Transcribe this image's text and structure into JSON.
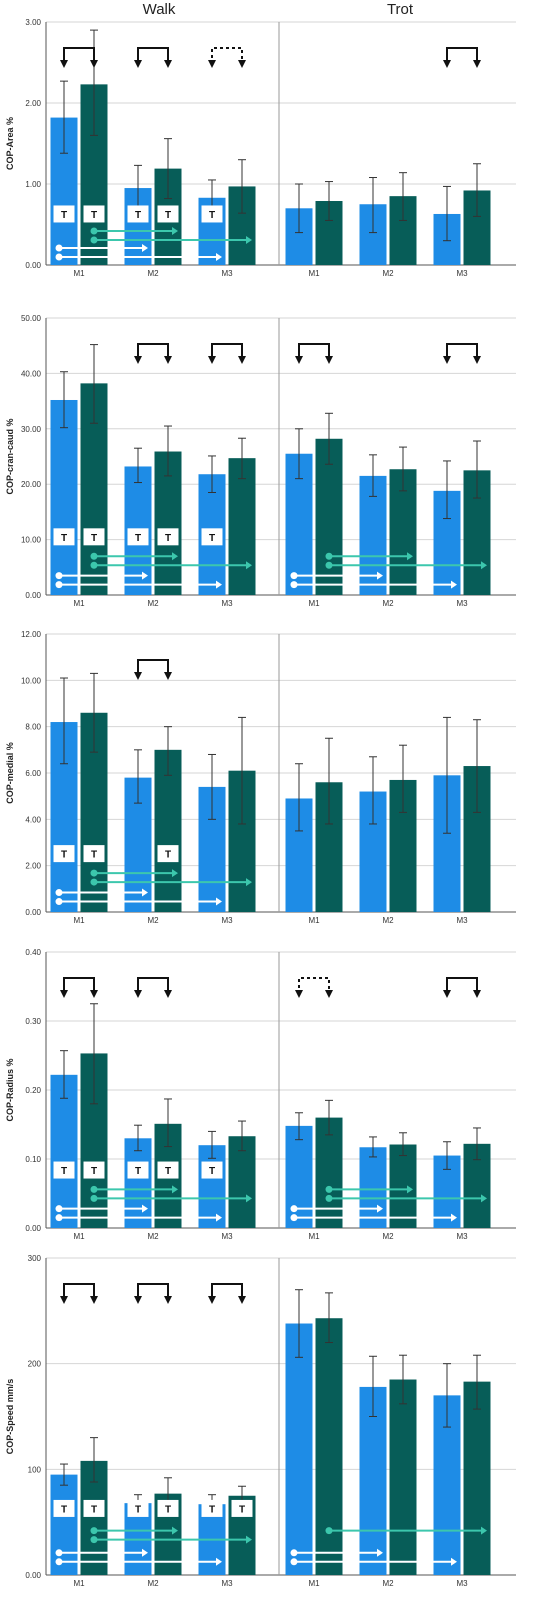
{
  "column_titles": [
    "Walk",
    "Trot"
  ],
  "categories": [
    "M1",
    "M2",
    "M3"
  ],
  "colors": {
    "light": "#1e8ce6",
    "dark": "#075d58",
    "teal": "#3cc7ad",
    "white": "#ffffff",
    "grid": "#d6d6d6",
    "axis": "#555555"
  },
  "chart_data": [
    {
      "type": "bar",
      "ylabel": "COP-Area %",
      "ylim": [
        0,
        3
      ],
      "ticks": [
        "0.00",
        "1.00",
        "2.00",
        "3.00"
      ],
      "tick_values": [
        0,
        1,
        2,
        3
      ],
      "walk": {
        "light": [
          {
            "v": 1.82,
            "lo": 1.38,
            "hi": 2.27
          },
          {
            "v": 0.95,
            "lo": 0.68,
            "hi": 1.23
          },
          {
            "v": 0.83,
            "lo": 0.61,
            "hi": 1.05
          }
        ],
        "dark": [
          {
            "v": 2.23,
            "lo": 1.6,
            "hi": 2.9
          },
          {
            "v": 1.19,
            "lo": 0.82,
            "hi": 1.56
          },
          {
            "v": 0.97,
            "lo": 0.64,
            "hi": 1.3
          }
        ],
        "brackets": [
          {
            "cat": 0,
            "dotted": false
          },
          {
            "cat": 1,
            "dotted": false
          },
          {
            "cat": 2,
            "dotted": true
          }
        ],
        "t_labels": [
          [
            true,
            true
          ],
          [
            true,
            true
          ],
          [
            true,
            false
          ]
        ],
        "teal_arrows": [
          1,
          2
        ],
        "white_arrows": [
          1,
          2
        ]
      },
      "trot": {
        "light": [
          {
            "v": 0.7,
            "lo": 0.4,
            "hi": 1.0
          },
          {
            "v": 0.75,
            "lo": 0.4,
            "hi": 1.08
          },
          {
            "v": 0.63,
            "lo": 0.3,
            "hi": 0.97
          }
        ],
        "dark": [
          {
            "v": 0.79,
            "lo": 0.55,
            "hi": 1.03
          },
          {
            "v": 0.85,
            "lo": 0.55,
            "hi": 1.14
          },
          {
            "v": 0.92,
            "lo": 0.6,
            "hi": 1.25
          }
        ],
        "brackets": [
          {
            "cat": 2,
            "dotted": false
          }
        ],
        "t_labels": [
          [
            false,
            false
          ],
          [
            false,
            false
          ],
          [
            false,
            false
          ]
        ],
        "teal_arrows": [],
        "white_arrows": []
      }
    },
    {
      "type": "bar",
      "ylabel": "COP-cran-caud %",
      "ylim": [
        0,
        50
      ],
      "ticks": [
        "0.00",
        "10.00",
        "20.00",
        "30.00",
        "40.00",
        "50.00"
      ],
      "tick_values": [
        0,
        10,
        20,
        30,
        40,
        50
      ],
      "walk": {
        "light": [
          {
            "v": 35.2,
            "lo": 30.2,
            "hi": 40.3
          },
          {
            "v": 23.2,
            "lo": 20.3,
            "hi": 26.5
          },
          {
            "v": 21.8,
            "lo": 18.5,
            "hi": 25.1
          }
        ],
        "dark": [
          {
            "v": 38.2,
            "lo": 31.0,
            "hi": 45.2
          },
          {
            "v": 25.9,
            "lo": 21.5,
            "hi": 30.5
          },
          {
            "v": 24.7,
            "lo": 21.0,
            "hi": 28.3
          }
        ],
        "brackets": [
          {
            "cat": 1,
            "dotted": false
          },
          {
            "cat": 2,
            "dotted": false
          }
        ],
        "t_labels": [
          [
            true,
            true
          ],
          [
            true,
            true
          ],
          [
            true,
            false
          ]
        ],
        "teal_arrows": [
          1,
          2
        ],
        "white_arrows": [
          1,
          2
        ]
      },
      "trot": {
        "light": [
          {
            "v": 25.5,
            "lo": 21.0,
            "hi": 30.0
          },
          {
            "v": 21.5,
            "lo": 17.8,
            "hi": 25.3
          },
          {
            "v": 18.8,
            "lo": 13.8,
            "hi": 24.2
          }
        ],
        "dark": [
          {
            "v": 28.2,
            "lo": 23.6,
            "hi": 32.8
          },
          {
            "v": 22.7,
            "lo": 18.8,
            "hi": 26.7
          },
          {
            "v": 22.5,
            "lo": 17.5,
            "hi": 27.8
          }
        ],
        "brackets": [
          {
            "cat": 0,
            "dotted": false
          },
          {
            "cat": 2,
            "dotted": false
          }
        ],
        "t_labels": [
          [
            false,
            false
          ],
          [
            false,
            false
          ],
          [
            false,
            false
          ]
        ],
        "teal_arrows": [
          1,
          2
        ],
        "white_arrows": [
          1,
          2
        ]
      }
    },
    {
      "type": "bar",
      "ylabel": "COP-medial %",
      "ylim": [
        0,
        12
      ],
      "ticks": [
        "0.00",
        "2.00",
        "4.00",
        "6.00",
        "8.00",
        "10.00",
        "12.00"
      ],
      "tick_values": [
        0,
        2,
        4,
        6,
        8,
        10,
        12
      ],
      "walk": {
        "light": [
          {
            "v": 8.2,
            "lo": 6.4,
            "hi": 10.1
          },
          {
            "v": 5.8,
            "lo": 4.7,
            "hi": 7.0
          },
          {
            "v": 5.4,
            "lo": 4.0,
            "hi": 6.8
          }
        ],
        "dark": [
          {
            "v": 8.6,
            "lo": 6.9,
            "hi": 10.3
          },
          {
            "v": 7.0,
            "lo": 5.9,
            "hi": 8.0
          },
          {
            "v": 6.1,
            "lo": 3.8,
            "hi": 8.4
          }
        ],
        "brackets": [
          {
            "cat": 1,
            "dotted": false
          }
        ],
        "t_labels": [
          [
            true,
            true
          ],
          [
            false,
            true
          ],
          [
            false,
            false
          ]
        ],
        "teal_arrows": [
          1,
          2
        ],
        "white_arrows": [
          1,
          2
        ]
      },
      "trot": {
        "light": [
          {
            "v": 4.9,
            "lo": 3.5,
            "hi": 6.4
          },
          {
            "v": 5.2,
            "lo": 3.8,
            "hi": 6.7
          },
          {
            "v": 5.9,
            "lo": 3.4,
            "hi": 8.4
          }
        ],
        "dark": [
          {
            "v": 5.6,
            "lo": 3.8,
            "hi": 7.5
          },
          {
            "v": 5.7,
            "lo": 4.3,
            "hi": 7.2
          },
          {
            "v": 6.3,
            "lo": 4.3,
            "hi": 8.3
          }
        ],
        "brackets": [],
        "t_labels": [
          [
            false,
            false
          ],
          [
            false,
            false
          ],
          [
            false,
            false
          ]
        ],
        "teal_arrows": [],
        "white_arrows": []
      }
    },
    {
      "type": "bar",
      "ylabel": "COP-Radius %",
      "ylim": [
        0,
        0.4
      ],
      "ticks": [
        "0.00",
        "0.10",
        "0.20",
        "0.30",
        "0.40"
      ],
      "tick_values": [
        0,
        0.1,
        0.2,
        0.3,
        0.4
      ],
      "walk": {
        "light": [
          {
            "v": 0.222,
            "lo": 0.188,
            "hi": 0.257
          },
          {
            "v": 0.13,
            "lo": 0.112,
            "hi": 0.149
          },
          {
            "v": 0.12,
            "lo": 0.101,
            "hi": 0.14
          }
        ],
        "dark": [
          {
            "v": 0.253,
            "lo": 0.18,
            "hi": 0.325
          },
          {
            "v": 0.151,
            "lo": 0.118,
            "hi": 0.187
          },
          {
            "v": 0.133,
            "lo": 0.112,
            "hi": 0.155
          }
        ],
        "brackets": [
          {
            "cat": 0,
            "dotted": false
          },
          {
            "cat": 1,
            "dotted": false
          }
        ],
        "t_labels": [
          [
            true,
            true
          ],
          [
            true,
            true
          ],
          [
            true,
            false
          ]
        ],
        "teal_arrows": [
          1,
          2
        ],
        "white_arrows": [
          1,
          2
        ]
      },
      "trot": {
        "light": [
          {
            "v": 0.148,
            "lo": 0.128,
            "hi": 0.167
          },
          {
            "v": 0.117,
            "lo": 0.103,
            "hi": 0.132
          },
          {
            "v": 0.105,
            "lo": 0.085,
            "hi": 0.125
          }
        ],
        "dark": [
          {
            "v": 0.16,
            "lo": 0.135,
            "hi": 0.185
          },
          {
            "v": 0.121,
            "lo": 0.105,
            "hi": 0.138
          },
          {
            "v": 0.122,
            "lo": 0.099,
            "hi": 0.145
          }
        ],
        "brackets": [
          {
            "cat": 0,
            "dotted": true
          },
          {
            "cat": 2,
            "dotted": false
          }
        ],
        "t_labels": [
          [
            false,
            false
          ],
          [
            false,
            false
          ],
          [
            false,
            false
          ]
        ],
        "teal_arrows": [
          1,
          2
        ],
        "white_arrows": [
          1,
          2
        ]
      }
    },
    {
      "type": "bar",
      "ylabel": "COP-Speed mm/s",
      "ylim": [
        0,
        300
      ],
      "ticks": [
        "0.00",
        "100",
        "200",
        "300"
      ],
      "tick_values": [
        0,
        100,
        200,
        300
      ],
      "walk": {
        "light": [
          {
            "v": 95,
            "lo": 85,
            "hi": 105
          },
          {
            "v": 68,
            "lo": 60,
            "hi": 76
          },
          {
            "v": 67,
            "lo": 59,
            "hi": 76
          }
        ],
        "dark": [
          {
            "v": 108,
            "lo": 88,
            "hi": 130
          },
          {
            "v": 77,
            "lo": 62,
            "hi": 92
          },
          {
            "v": 75,
            "lo": 66,
            "hi": 84
          }
        ],
        "brackets": [
          {
            "cat": 0,
            "dotted": false
          },
          {
            "cat": 1,
            "dotted": false
          },
          {
            "cat": 2,
            "dotted": false
          }
        ],
        "t_labels": [
          [
            true,
            true
          ],
          [
            true,
            true
          ],
          [
            true,
            true
          ]
        ],
        "teal_arrows": [
          1,
          2
        ],
        "white_arrows": [
          1,
          2
        ]
      },
      "trot": {
        "light": [
          {
            "v": 238,
            "lo": 206,
            "hi": 270
          },
          {
            "v": 178,
            "lo": 150,
            "hi": 207
          },
          {
            "v": 170,
            "lo": 140,
            "hi": 200
          }
        ],
        "dark": [
          {
            "v": 243,
            "lo": 220,
            "hi": 267
          },
          {
            "v": 185,
            "lo": 162,
            "hi": 208
          },
          {
            "v": 183,
            "lo": 157,
            "hi": 208
          }
        ],
        "brackets": [],
        "t_labels": [
          [
            false,
            false
          ],
          [
            false,
            false
          ],
          [
            false,
            false
          ]
        ],
        "teal_arrows": [
          2
        ],
        "white_arrows": [
          1,
          2
        ]
      }
    }
  ]
}
